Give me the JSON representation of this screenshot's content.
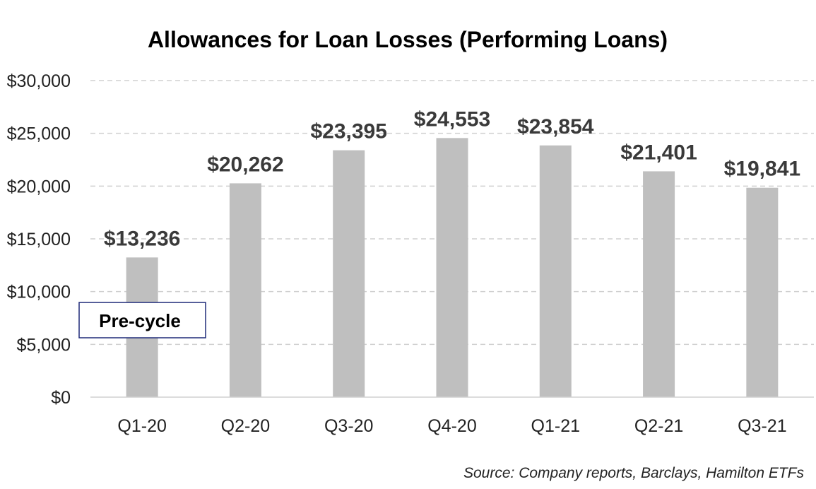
{
  "chart_data": {
    "type": "bar",
    "title": "Allowances for Loan Losses (Performing Loans)",
    "categories": [
      "Q1-20",
      "Q2-20",
      "Q3-20",
      "Q4-20",
      "Q1-21",
      "Q2-21",
      "Q3-21"
    ],
    "values": [
      13236,
      20262,
      23395,
      24553,
      23854,
      21401,
      19841
    ],
    "data_labels": [
      "$13,236",
      "$20,262",
      "$23,395",
      "$24,553",
      "$23,854",
      "$21,401",
      "$19,841"
    ],
    "ylim": [
      0,
      30000
    ],
    "yticks": [
      0,
      5000,
      10000,
      15000,
      20000,
      25000,
      30000
    ],
    "ytick_labels": [
      "$0",
      "$5,000",
      "$10,000",
      "$15,000",
      "$20,000",
      "$25,000",
      "$30,000"
    ],
    "xlabel": "",
    "ylabel": "",
    "grid": true,
    "legend": "none",
    "bar_color": "#bfbfbf",
    "annotation": {
      "text": "Pre-cycle",
      "border_color": "#1f2a78"
    },
    "source": "Source: Company reports, Barclays, Hamilton ETFs"
  }
}
